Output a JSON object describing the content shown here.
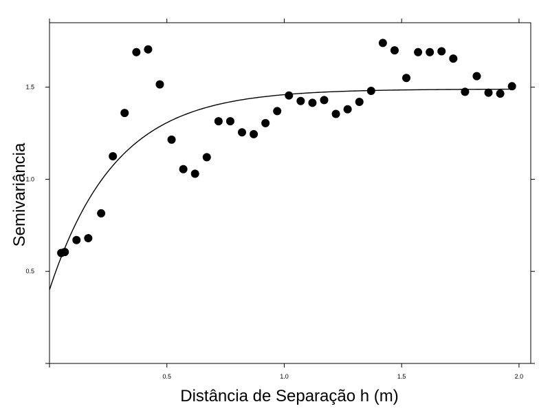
{
  "chart_data": {
    "type": "scatter",
    "xlabel": "Distância de Separação h (m)",
    "ylabel": "Semivariância",
    "xlim": [
      0,
      2.05
    ],
    "ylim": [
      0.0,
      1.85
    ],
    "x_ticks": [
      {
        "value": 0.5,
        "label": "0.5"
      },
      {
        "value": 1.0,
        "label": "1.0"
      },
      {
        "value": 1.5,
        "label": "1.5"
      },
      {
        "value": 2.0,
        "label": "2.0"
      }
    ],
    "y_ticks": [
      {
        "value": 0.5,
        "label": "0.5"
      },
      {
        "value": 1.0,
        "label": "1.0"
      },
      {
        "value": 1.5,
        "label": "1.5"
      }
    ],
    "grid": false,
    "legend": "none",
    "marker_color": "#000000",
    "line_color": "#000000",
    "points": [
      {
        "x": 0.05,
        "y": 0.6
      },
      {
        "x": 0.065,
        "y": 0.605
      },
      {
        "x": 0.115,
        "y": 0.67
      },
      {
        "x": 0.165,
        "y": 0.68
      },
      {
        "x": 0.22,
        "y": 0.815
      },
      {
        "x": 0.27,
        "y": 1.125
      },
      {
        "x": 0.32,
        "y": 1.36
      },
      {
        "x": 0.37,
        "y": 1.69
      },
      {
        "x": 0.42,
        "y": 1.705
      },
      {
        "x": 0.47,
        "y": 1.515
      },
      {
        "x": 0.52,
        "y": 1.215
      },
      {
        "x": 0.57,
        "y": 1.055
      },
      {
        "x": 0.62,
        "y": 1.03
      },
      {
        "x": 0.67,
        "y": 1.12
      },
      {
        "x": 0.72,
        "y": 1.315
      },
      {
        "x": 0.77,
        "y": 1.315
      },
      {
        "x": 0.82,
        "y": 1.255
      },
      {
        "x": 0.87,
        "y": 1.245
      },
      {
        "x": 0.92,
        "y": 1.305
      },
      {
        "x": 0.97,
        "y": 1.37
      },
      {
        "x": 1.02,
        "y": 1.455
      },
      {
        "x": 1.07,
        "y": 1.425
      },
      {
        "x": 1.12,
        "y": 1.415
      },
      {
        "x": 1.17,
        "y": 1.43
      },
      {
        "x": 1.22,
        "y": 1.355
      },
      {
        "x": 1.27,
        "y": 1.38
      },
      {
        "x": 1.32,
        "y": 1.42
      },
      {
        "x": 1.37,
        "y": 1.48
      },
      {
        "x": 1.42,
        "y": 1.74
      },
      {
        "x": 1.47,
        "y": 1.7
      },
      {
        "x": 1.52,
        "y": 1.55
      },
      {
        "x": 1.57,
        "y": 1.69
      },
      {
        "x": 1.62,
        "y": 1.69
      },
      {
        "x": 1.67,
        "y": 1.695
      },
      {
        "x": 1.72,
        "y": 1.655
      },
      {
        "x": 1.77,
        "y": 1.475
      },
      {
        "x": 1.82,
        "y": 1.56
      },
      {
        "x": 1.87,
        "y": 1.47
      },
      {
        "x": 1.92,
        "y": 1.465
      },
      {
        "x": 1.97,
        "y": 1.505
      }
    ],
    "fitted_model": {
      "type": "exponential",
      "nugget": 0.4,
      "sill": 1.49,
      "range_param": 0.28,
      "x_from": 0,
      "x_to": 1.97
    }
  }
}
